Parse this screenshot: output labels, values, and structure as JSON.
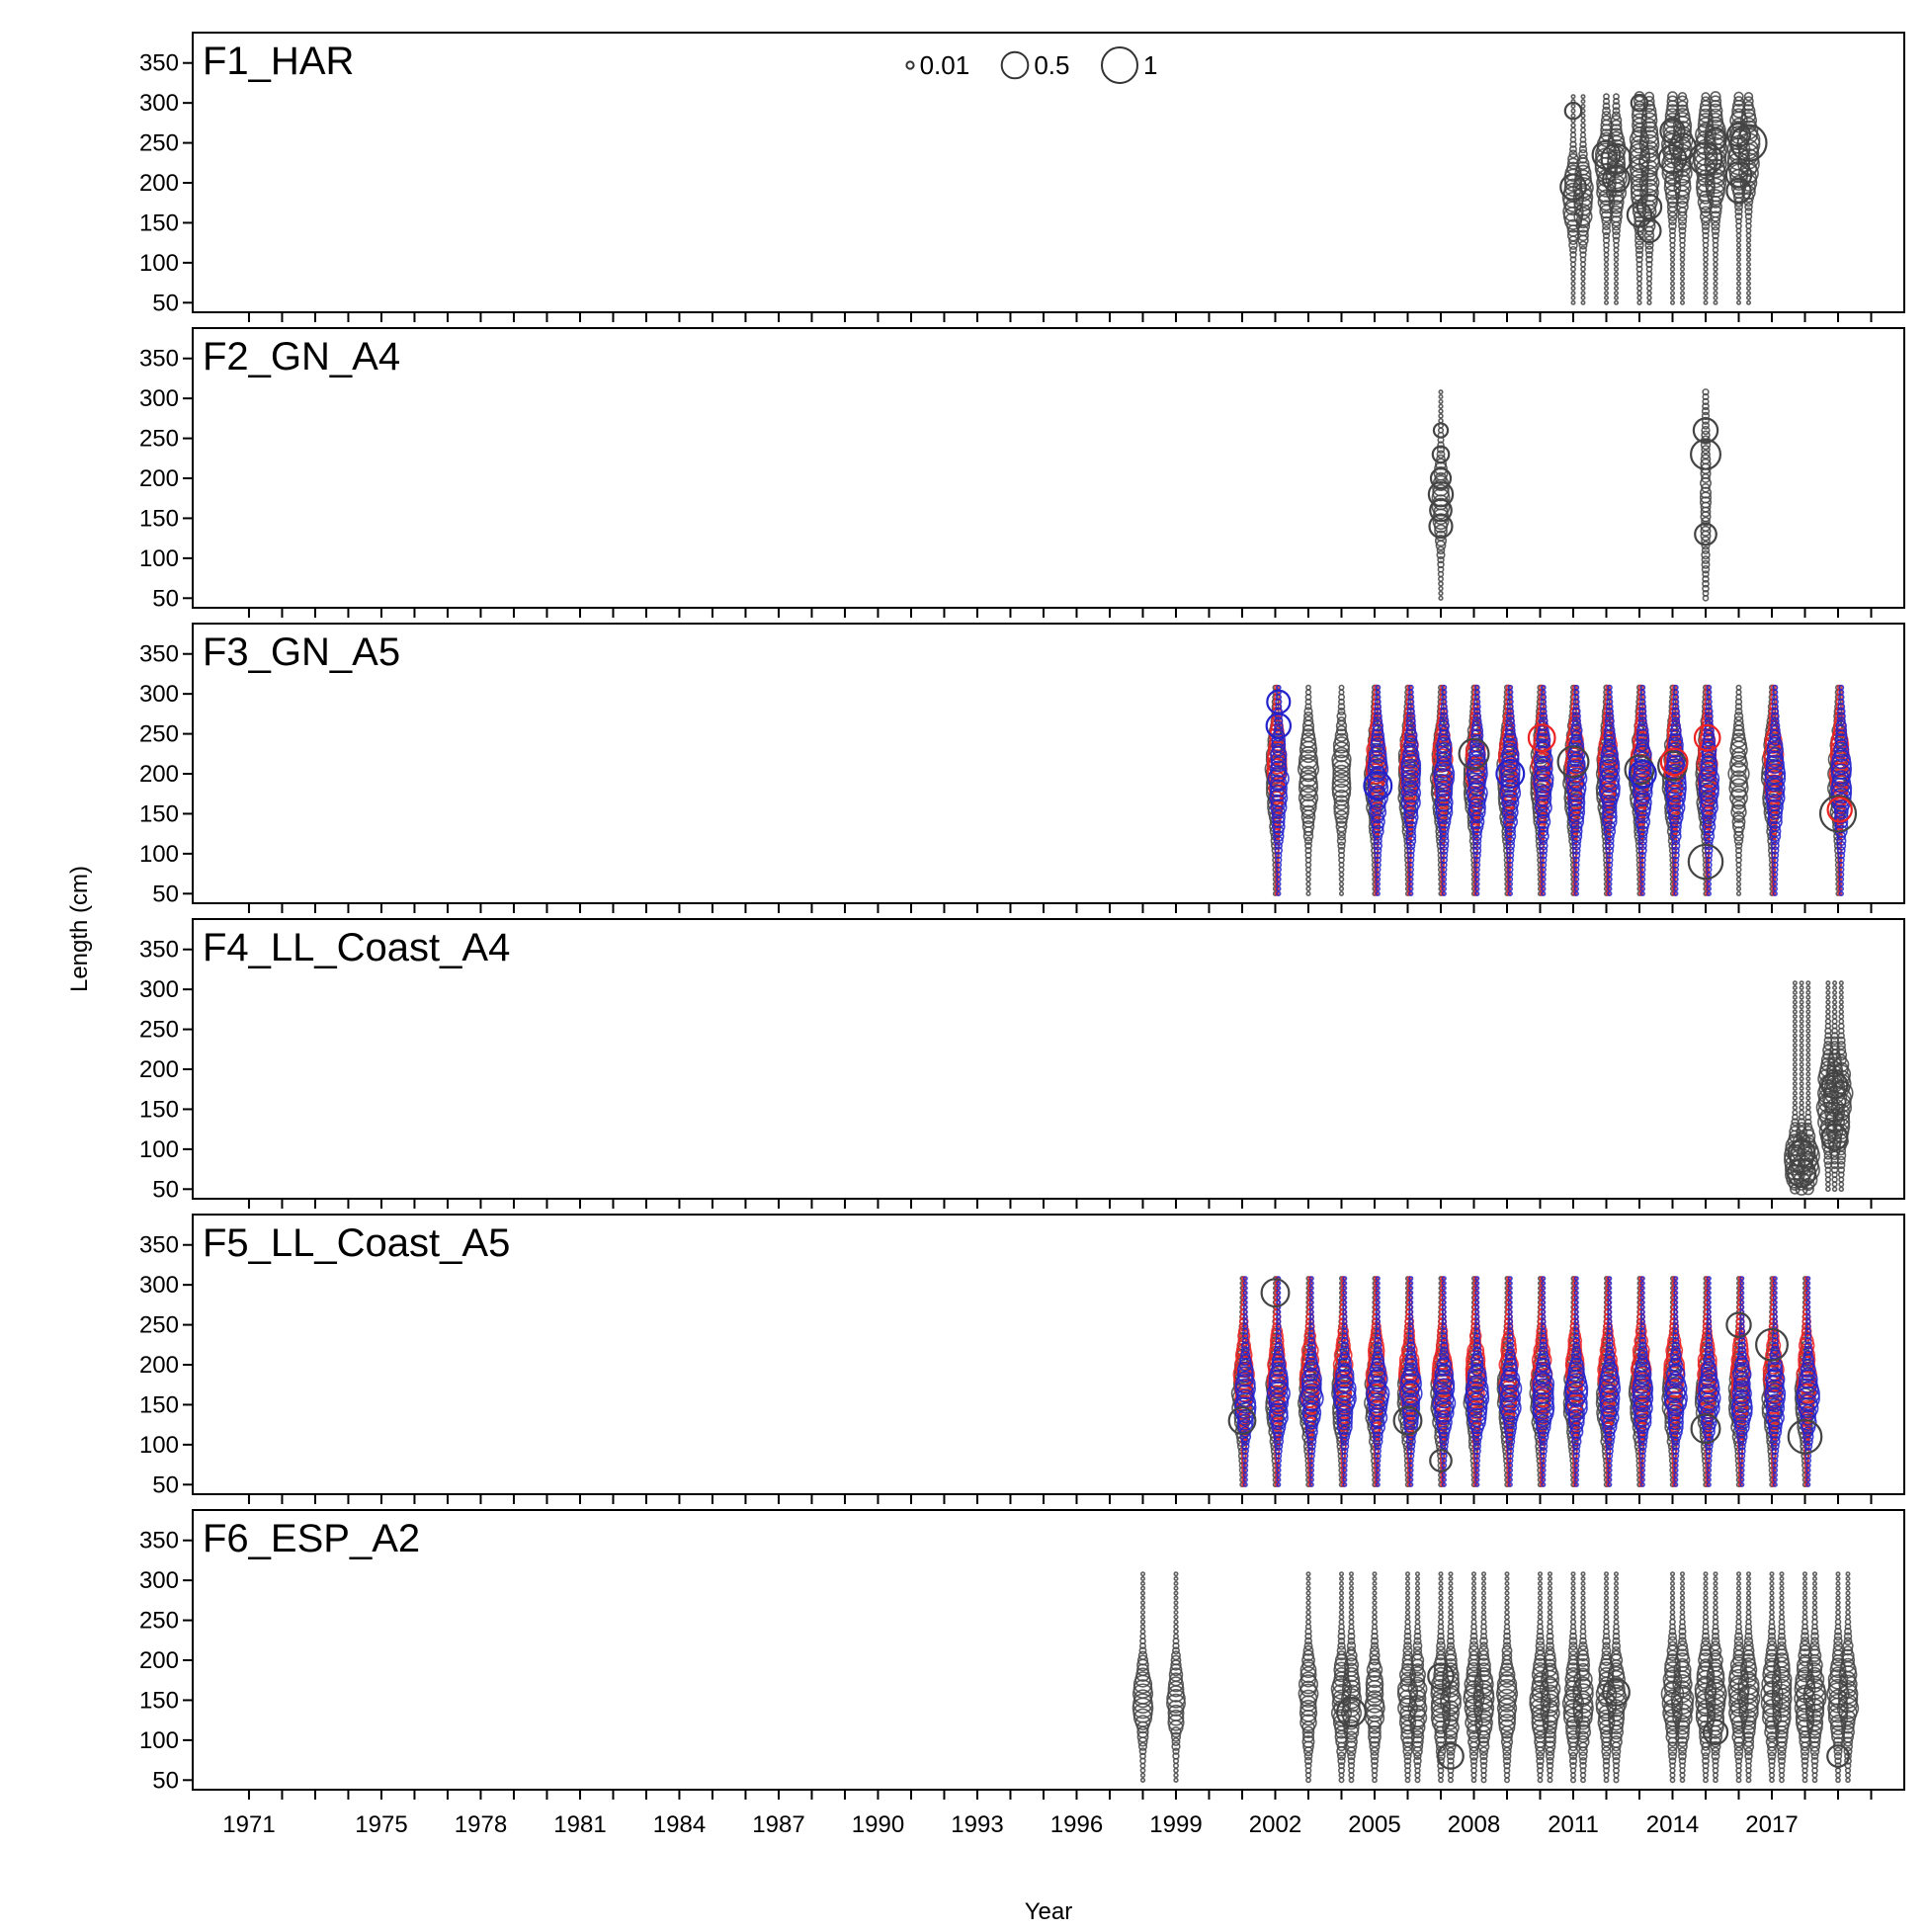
{
  "chart_data": {
    "type": "scatter",
    "subtype": "bubble",
    "xlabel": "Year",
    "ylabel": "Length (cm)",
    "yticks": [
      50,
      100,
      150,
      200,
      250,
      300,
      350
    ],
    "ylim": [
      38,
      388
    ],
    "xlim": [
      1969.3,
      2021.0
    ],
    "xtick_labels": [
      1971,
      1975,
      1978,
      1981,
      1984,
      1987,
      1990,
      1993,
      1996,
      1999,
      2002,
      2005,
      2008,
      2011,
      2014,
      2017
    ],
    "xtick_marks": [
      1971,
      1972,
      1973,
      1974,
      1975,
      1976,
      1977,
      1978,
      1979,
      1980,
      1981,
      1982,
      1983,
      1984,
      1985,
      1986,
      1987,
      1988,
      1989,
      1990,
      1991,
      1992,
      1993,
      1994,
      1995,
      1996,
      1997,
      1998,
      1999,
      2000,
      2001,
      2002,
      2003,
      2004,
      2005,
      2006,
      2007,
      2008,
      2009,
      2010,
      2011,
      2012,
      2013,
      2014,
      2015,
      2016,
      2017,
      2018,
      2019,
      2020
    ],
    "legend": {
      "placement": "top-center",
      "entries": [
        {
          "label": "0.01",
          "value": 0.01
        },
        {
          "label": "0.5",
          "value": 0.5
        },
        {
          "label": "1",
          "value": 1
        }
      ]
    },
    "bins": {
      "min": 50,
      "max": 312,
      "step": 6
    },
    "colors": {
      "combined": "#444444",
      "female": "#ee2222",
      "male": "#2222cc",
      "frame": "#000000"
    },
    "panels": [
      {
        "name": "F1_HAR",
        "groups": [
          {
            "sex": "combined",
            "years": [
              2011.0,
              2011.3
            ],
            "profile": {
              "mode": 180,
              "sd": 25,
              "amp": 0.35
            }
          },
          {
            "sex": "combined",
            "years": [
              2012.0,
              2012.3
            ],
            "profile": {
              "mode": 215,
              "sd": 30,
              "amp": 0.4
            }
          },
          {
            "sex": "combined",
            "years": [
              2013.0,
              2013.3
            ],
            "profile": {
              "mode": 225,
              "sd": 45,
              "amp": 0.3
            }
          },
          {
            "sex": "combined",
            "years": [
              2014.0,
              2014.3
            ],
            "profile": {
              "mode": 235,
              "sd": 35,
              "amp": 0.35
            }
          },
          {
            "sex": "combined",
            "years": [
              2015.0,
              2015.3
            ],
            "profile": {
              "mode": 230,
              "sd": 35,
              "amp": 0.45
            }
          },
          {
            "sex": "combined",
            "years": [
              2016.0,
              2016.3
            ],
            "profile": {
              "mode": 240,
              "sd": 30,
              "amp": 0.4
            }
          }
        ],
        "highlights": [
          {
            "year": 2011.0,
            "length": 290,
            "value": 0.15
          },
          {
            "year": 2011.0,
            "length": 195,
            "value": 0.45
          },
          {
            "year": 2012.0,
            "length": 235,
            "value": 0.55
          },
          {
            "year": 2012.3,
            "length": 230,
            "value": 0.65
          },
          {
            "year": 2012.3,
            "length": 205,
            "value": 0.5
          },
          {
            "year": 2013.0,
            "length": 160,
            "value": 0.4
          },
          {
            "year": 2013.3,
            "length": 170,
            "value": 0.4
          },
          {
            "year": 2013.3,
            "length": 140,
            "value": 0.35
          },
          {
            "year": 2013.0,
            "length": 300,
            "value": 0.15
          },
          {
            "year": 2014.0,
            "length": 230,
            "value": 0.55
          },
          {
            "year": 2014.0,
            "length": 265,
            "value": 0.4
          },
          {
            "year": 2014.3,
            "length": 245,
            "value": 0.5
          },
          {
            "year": 2015.0,
            "length": 230,
            "value": 0.8
          },
          {
            "year": 2015.3,
            "length": 255,
            "value": 0.3
          },
          {
            "year": 2016.0,
            "length": 190,
            "value": 0.4
          },
          {
            "year": 2016.0,
            "length": 210,
            "value": 0.45
          },
          {
            "year": 2016.3,
            "length": 250,
            "value": 1.0
          },
          {
            "year": 2016.0,
            "length": 260,
            "value": 0.35
          }
        ]
      },
      {
        "name": "F2_GN_A4",
        "groups": [
          {
            "sex": "combined",
            "years": [
              2007.0
            ],
            "profile": {
              "mode": 170,
              "sd": 30,
              "amp": 0.2
            }
          },
          {
            "sex": "combined",
            "years": [
              2015.0
            ],
            "profile": {
              "mode": 180,
              "sd": 60,
              "amp": 0.05
            }
          }
        ],
        "highlights": [
          {
            "year": 2007.0,
            "length": 180,
            "value": 0.4
          },
          {
            "year": 2007.0,
            "length": 160,
            "value": 0.3
          },
          {
            "year": 2007.0,
            "length": 140,
            "value": 0.35
          },
          {
            "year": 2007.0,
            "length": 200,
            "value": 0.25
          },
          {
            "year": 2007.0,
            "length": 230,
            "value": 0.15
          },
          {
            "year": 2007.0,
            "length": 260,
            "value": 0.1
          },
          {
            "year": 2015.0,
            "length": 260,
            "value": 0.4
          },
          {
            "year": 2015.0,
            "length": 230,
            "value": 0.65
          },
          {
            "year": 2015.0,
            "length": 130,
            "value": 0.3
          }
        ]
      },
      {
        "name": "F3_GN_A5",
        "groups": [
          {
            "sex": "combined",
            "years": [
              2002,
              2003,
              2004,
              2005,
              2006,
              2007,
              2008,
              2009,
              2010,
              2011,
              2012,
              2013,
              2014,
              2015,
              2016,
              2017,
              2019
            ],
            "profile": {
              "mode": 195,
              "sd": 35,
              "amp": 0.3
            }
          },
          {
            "sex": "female",
            "years": [
              2002,
              2005,
              2006,
              2007,
              2008,
              2009,
              2010,
              2011,
              2012,
              2013,
              2014,
              2015,
              2017,
              2019
            ],
            "profile": {
              "mode": 210,
              "sd": 30,
              "amp": 0.3
            }
          },
          {
            "sex": "male",
            "years": [
              2002,
              2005,
              2006,
              2007,
              2008,
              2009,
              2010,
              2011,
              2012,
              2013,
              2014,
              2015,
              2017,
              2019
            ],
            "profile": {
              "mode": 190,
              "sd": 35,
              "amp": 0.3
            }
          }
        ],
        "highlights": [
          {
            "sex": "male",
            "year": 2002,
            "length": 290,
            "value": 0.35
          },
          {
            "sex": "male",
            "year": 2002,
            "length": 260,
            "value": 0.4
          },
          {
            "sex": "male",
            "year": 2005,
            "length": 185,
            "value": 0.55
          },
          {
            "sex": "combined",
            "year": 2008,
            "length": 225,
            "value": 0.65
          },
          {
            "sex": "male",
            "year": 2009,
            "length": 200,
            "value": 0.55
          },
          {
            "sex": "female",
            "year": 2010,
            "length": 245,
            "value": 0.5
          },
          {
            "sex": "combined",
            "year": 2011,
            "length": 215,
            "value": 0.7
          },
          {
            "sex": "combined",
            "year": 2013,
            "length": 205,
            "value": 0.6
          },
          {
            "sex": "male",
            "year": 2013,
            "length": 200,
            "value": 0.5
          },
          {
            "sex": "combined",
            "year": 2014,
            "length": 210,
            "value": 0.6
          },
          {
            "sex": "female",
            "year": 2014,
            "length": 215,
            "value": 0.5
          },
          {
            "sex": "combined",
            "year": 2015,
            "length": 90,
            "value": 0.9
          },
          {
            "sex": "female",
            "year": 2015,
            "length": 245,
            "value": 0.45
          },
          {
            "sex": "combined",
            "year": 2019,
            "length": 150,
            "value": 1.0
          },
          {
            "sex": "female",
            "year": 2019,
            "length": 155,
            "value": 0.4
          }
        ]
      },
      {
        "name": "F4_LL_Coast_A4",
        "groups": [
          {
            "sex": "combined",
            "years": [
              2017.7,
              2017.9,
              2018.1
            ],
            "profile": {
              "mode": 85,
              "sd": 18,
              "amp": 0.45
            }
          },
          {
            "sex": "combined",
            "years": [
              2018.7,
              2018.9,
              2019.1
            ],
            "profile": {
              "mode": 160,
              "sd": 30,
              "amp": 0.4
            }
          }
        ],
        "highlights": [
          {
            "year": 2017.9,
            "length": 70,
            "value": 0.55
          },
          {
            "year": 2017.9,
            "length": 95,
            "value": 0.5
          },
          {
            "year": 2018.9,
            "length": 115,
            "value": 0.45
          },
          {
            "year": 2018.9,
            "length": 180,
            "value": 0.45
          }
        ]
      },
      {
        "name": "F5_LL_Coast_A5",
        "groups": [
          {
            "sex": "combined",
            "years": [
              2001,
              2002,
              2003,
              2004,
              2005,
              2006,
              2007,
              2008,
              2009,
              2010,
              2011,
              2012,
              2013,
              2014,
              2015,
              2016,
              2017,
              2018
            ],
            "profile": {
              "mode": 160,
              "sd": 30,
              "amp": 0.3
            }
          },
          {
            "sex": "female",
            "years": [
              2001,
              2002,
              2003,
              2004,
              2005,
              2006,
              2007,
              2008,
              2009,
              2010,
              2011,
              2012,
              2013,
              2014,
              2015,
              2016,
              2017,
              2018
            ],
            "profile": {
              "mode": 185,
              "sd": 30,
              "amp": 0.3
            }
          },
          {
            "sex": "male",
            "years": [
              2001,
              2002,
              2003,
              2004,
              2005,
              2006,
              2007,
              2008,
              2009,
              2010,
              2011,
              2012,
              2013,
              2014,
              2015,
              2016,
              2017,
              2018
            ],
            "profile": {
              "mode": 160,
              "sd": 25,
              "amp": 0.38
            }
          }
        ],
        "highlights": [
          {
            "sex": "combined",
            "year": 2002,
            "length": 290,
            "value": 0.55
          },
          {
            "sex": "combined",
            "year": 2001,
            "length": 130,
            "value": 0.5
          },
          {
            "sex": "combined",
            "year": 2006,
            "length": 130,
            "value": 0.55
          },
          {
            "sex": "combined",
            "year": 2007,
            "length": 80,
            "value": 0.3
          },
          {
            "sex": "combined",
            "year": 2015,
            "length": 120,
            "value": 0.6
          },
          {
            "sex": "combined",
            "year": 2016,
            "length": 250,
            "value": 0.4
          },
          {
            "sex": "combined",
            "year": 2017,
            "length": 225,
            "value": 0.75
          },
          {
            "sex": "combined",
            "year": 2018,
            "length": 110,
            "value": 0.85
          }
        ]
      },
      {
        "name": "F6_ESP_A2",
        "groups": [
          {
            "sex": "combined",
            "years": [
              1998,
              1999
            ],
            "profile": {
              "mode": 150,
              "sd": 25,
              "amp": 0.3
            }
          },
          {
            "sex": "combined",
            "years": [
              2003,
              2004,
              2004.3,
              2005,
              2006,
              2006.3,
              2007,
              2007.3,
              2008,
              2008.3,
              2009
            ],
            "profile": {
              "mode": 150,
              "sd": 30,
              "amp": 0.3
            }
          },
          {
            "sex": "combined",
            "years": [
              2010,
              2010.3,
              2011,
              2011.3,
              2012,
              2012.3
            ],
            "profile": {
              "mode": 150,
              "sd": 30,
              "amp": 0.3
            }
          },
          {
            "sex": "combined",
            "years": [
              2014,
              2014.3,
              2015,
              2015.3,
              2016,
              2016.3,
              2017,
              2017.3,
              2018,
              2018.3,
              2019,
              2019.3
            ],
            "profile": {
              "mode": 155,
              "sd": 30,
              "amp": 0.35
            }
          }
        ],
        "highlights": [
          {
            "year": 2004.3,
            "length": 135,
            "value": 0.6
          },
          {
            "year": 2007,
            "length": 180,
            "value": 0.45
          },
          {
            "year": 2007.3,
            "length": 80,
            "value": 0.45
          },
          {
            "year": 2012.3,
            "length": 160,
            "value": 0.5
          },
          {
            "year": 2015.3,
            "length": 110,
            "value": 0.4
          },
          {
            "year": 2019,
            "length": 80,
            "value": 0.3
          }
        ]
      }
    ]
  }
}
